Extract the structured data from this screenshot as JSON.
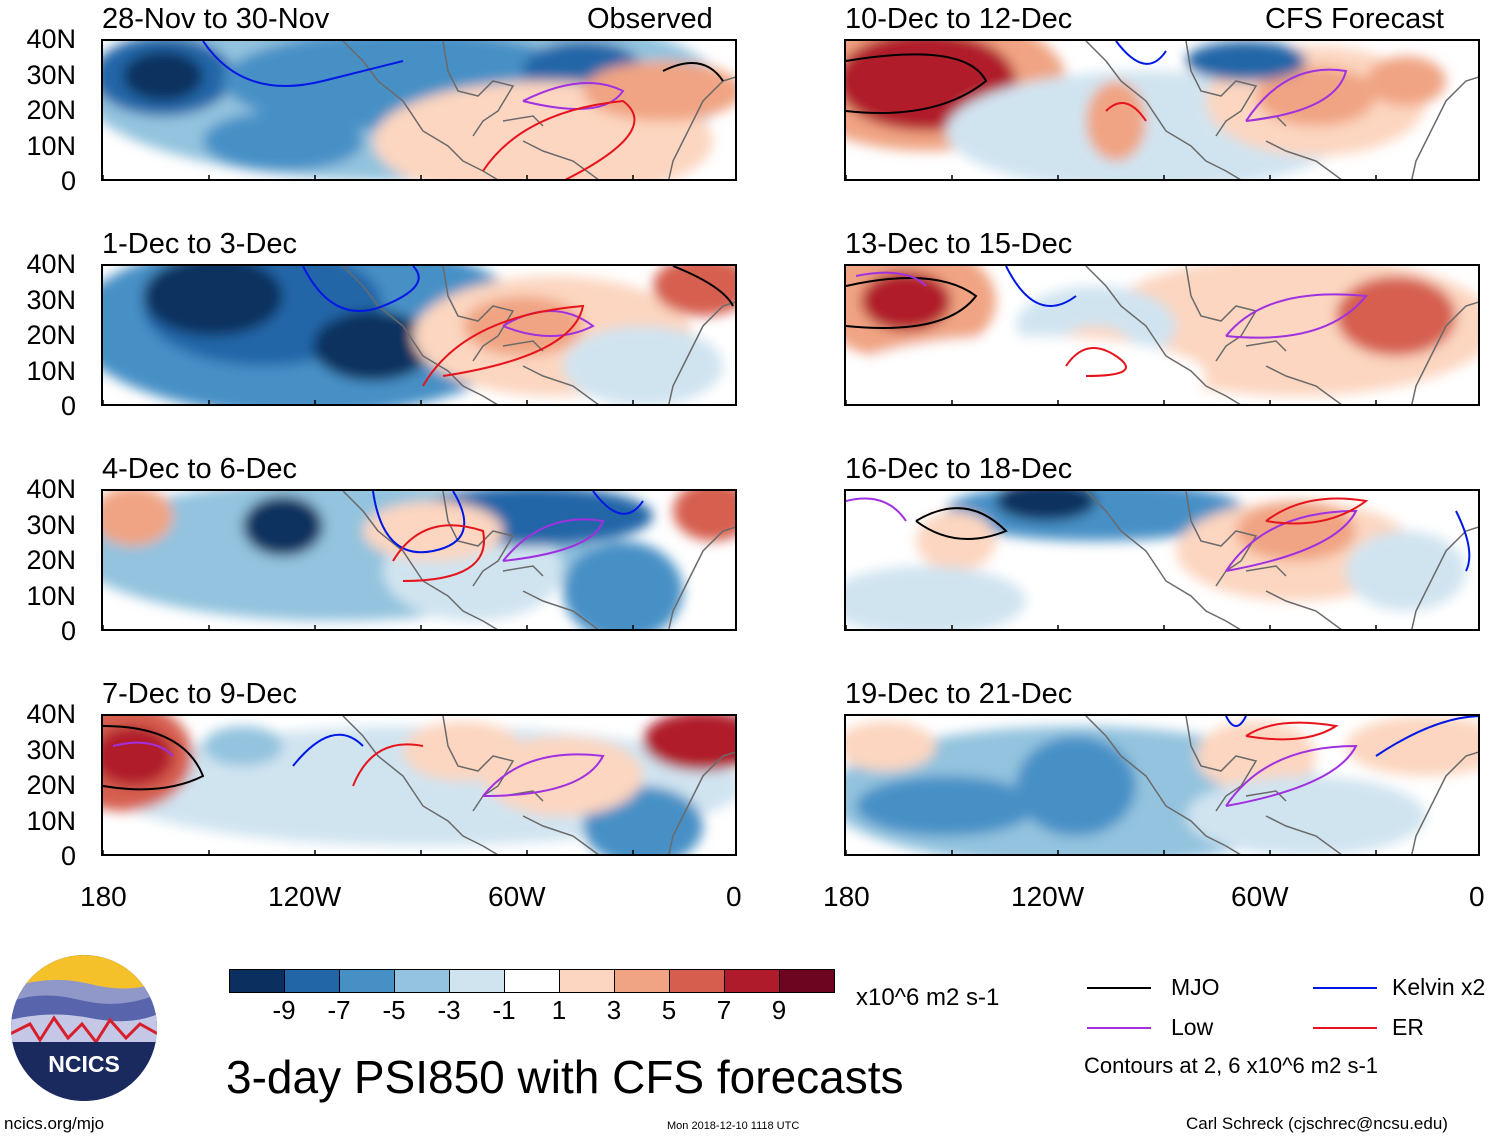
{
  "title": "3-day PSI850 with CFS forecasts",
  "header_left": "Observed",
  "header_right": "CFS Forecast",
  "panels_left": [
    {
      "period": "28-Nov to 30-Nov"
    },
    {
      "period": "1-Dec to 3-Dec"
    },
    {
      "period": "4-Dec to 6-Dec"
    },
    {
      "period": "7-Dec to 9-Dec"
    }
  ],
  "panels_right": [
    {
      "period": "10-Dec to 12-Dec"
    },
    {
      "period": "13-Dec to 15-Dec"
    },
    {
      "period": "16-Dec to 18-Dec"
    },
    {
      "period": "19-Dec to 21-Dec"
    }
  ],
  "lat_labels": [
    "40N",
    "30N",
    "20N",
    "10N",
    "0"
  ],
  "lon_labels": [
    "180",
    "120W",
    "60W",
    "0"
  ],
  "colorbar": {
    "ticks": [
      "-9",
      "-7",
      "-5",
      "-3",
      "-1",
      "1",
      "3",
      "5",
      "7",
      "9"
    ],
    "units": "x10^6 m2 s-1",
    "colors": [
      "#0b305f",
      "#2366a8",
      "#4690c6",
      "#93c3de",
      "#d0e4f0",
      "#ffffff",
      "#fcd6c0",
      "#f0a483",
      "#d65e4f",
      "#b01b2c",
      "#6b0520"
    ]
  },
  "legend": {
    "items": [
      {
        "label": "MJO",
        "color": "#000000"
      },
      {
        "label": "Kelvin x2",
        "color": "#0018e6"
      },
      {
        "label": "Low",
        "color": "#a030e0"
      },
      {
        "label": "ER",
        "color": "#e6141c"
      }
    ],
    "note": "Contours at 2, 6 x10^6 m2 s-1"
  },
  "logo_text": "NCICS",
  "footer": {
    "url": "ncics.org/mjo",
    "timestamp": "Mon 2018-12-10 1118 UTC",
    "credit": "Carl Schreck (cjschrec@ncsu.edu)"
  }
}
